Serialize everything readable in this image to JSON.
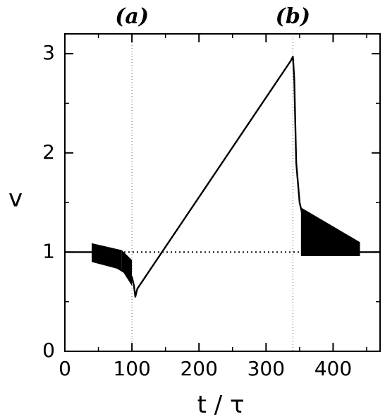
{
  "chart_data": {
    "type": "line",
    "xlabel": "t / τ",
    "ylabel": "v",
    "xlim": [
      0,
      470
    ],
    "ylim": [
      0,
      3.2
    ],
    "xticks": [
      0,
      100,
      200,
      300,
      400
    ],
    "yticks": [
      0,
      1,
      2,
      3
    ],
    "grid": false,
    "markers": [
      {
        "label": "(a)",
        "x": 100
      },
      {
        "label": "(b)",
        "x": 340
      }
    ],
    "reference_line": {
      "y": 1,
      "style": "dotted"
    },
    "series": [
      {
        "x": [
          0,
          40,
          100,
          103,
          105,
          108,
          337,
          340,
          342,
          345,
          350,
          360,
          380,
          400,
          440,
          470
        ],
        "y": [
          1.0,
          1.0,
          0.75,
          0.66,
          0.55,
          0.63,
          2.93,
          2.97,
          2.75,
          1.9,
          1.5,
          1.2,
          1.06,
          1.03,
          1.0,
          1.0
        ]
      }
    ]
  }
}
